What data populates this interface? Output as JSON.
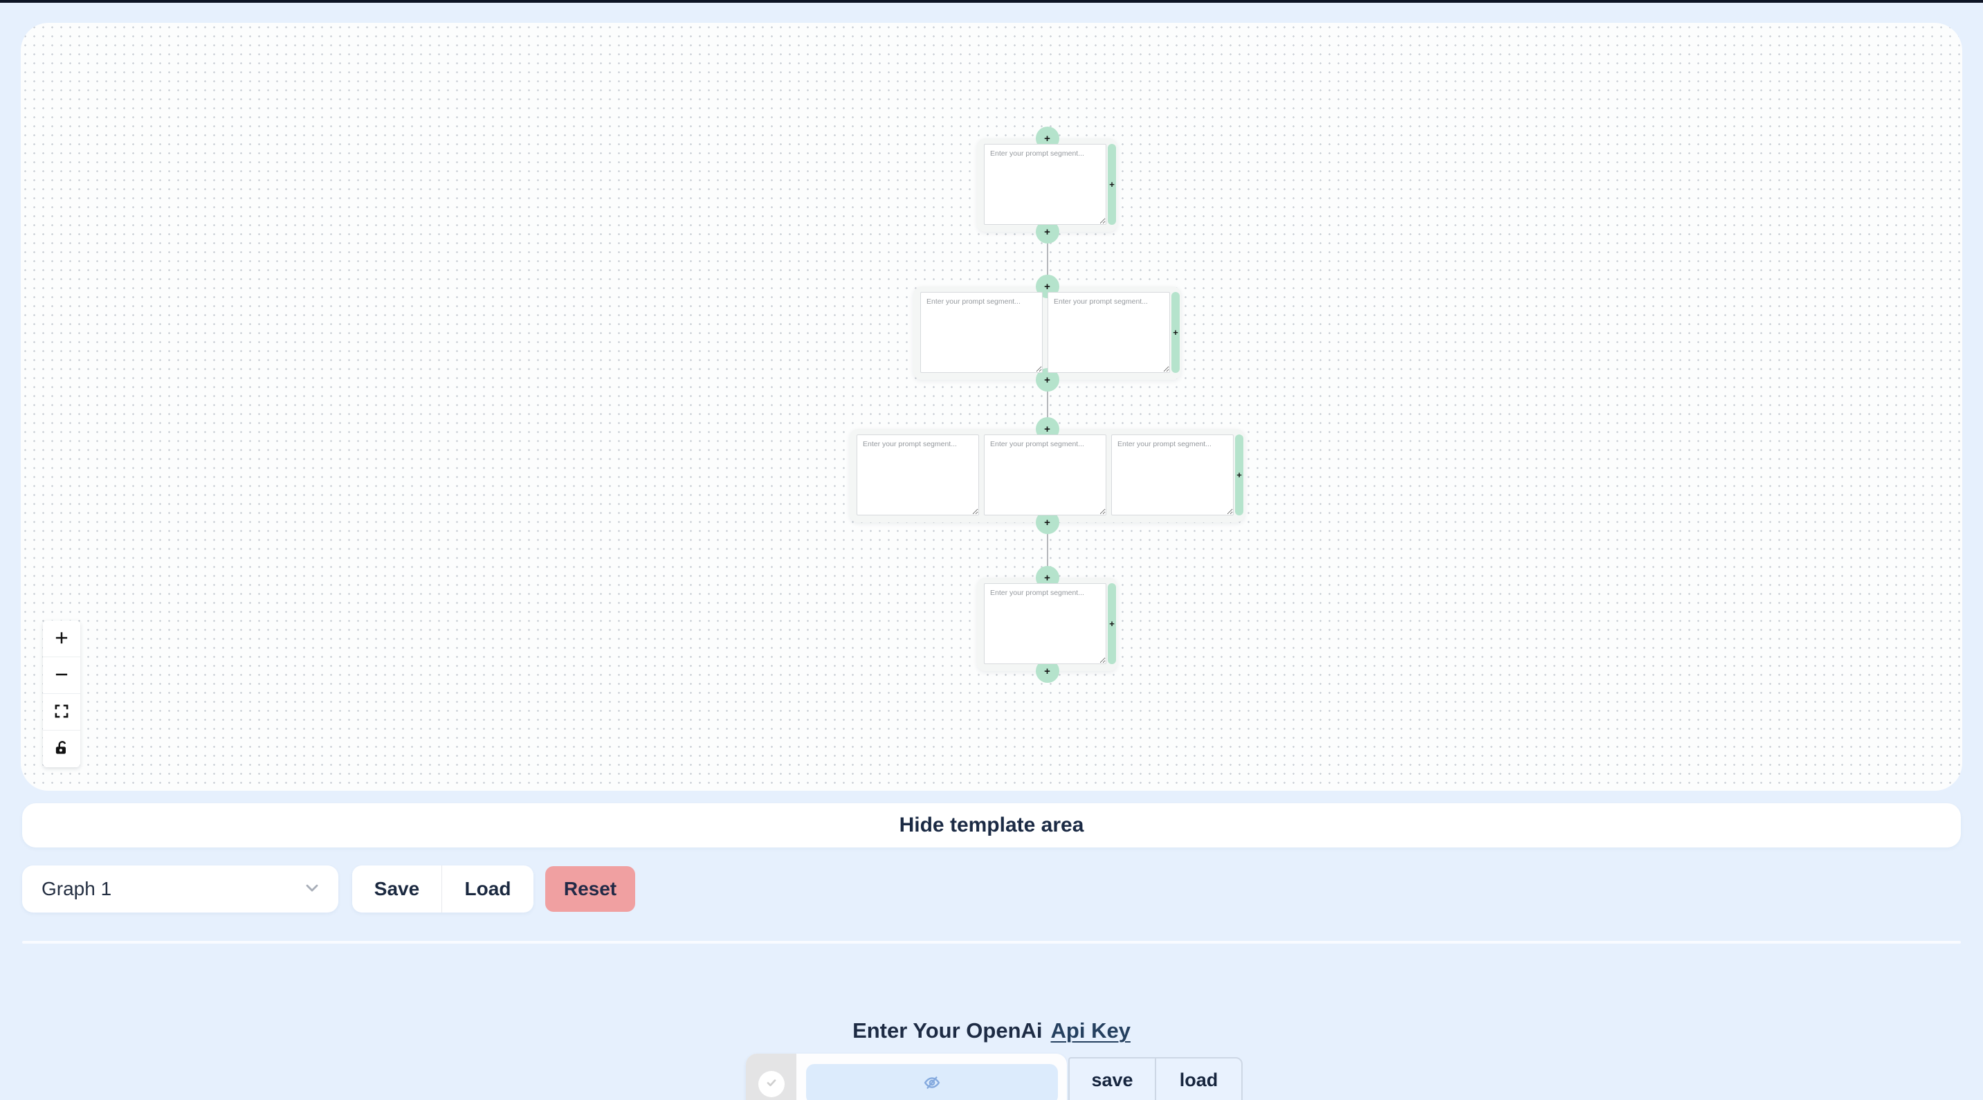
{
  "window": {
    "top_bar_color": "#0d1424",
    "page_background": "#e6f0fd"
  },
  "canvas": {
    "background": "#fcfdfd",
    "dot_color": "#ccd1d7",
    "accent_green": "#b5e3cc",
    "prompt_placeholder": "Enter your prompt segment...",
    "add_handle_label": "+",
    "node_rows": [
      {
        "segments": 1
      },
      {
        "segments": 2
      },
      {
        "segments": 3
      },
      {
        "segments": 1
      }
    ],
    "controls": [
      {
        "name": "zoom-in-icon"
      },
      {
        "name": "zoom-out-icon"
      },
      {
        "name": "fit-view-icon"
      },
      {
        "name": "unlock-icon"
      }
    ]
  },
  "template_bar": {
    "label": "Hide template area"
  },
  "graph_toolbar": {
    "graph_select_value": "Graph 1",
    "save_label": "Save",
    "load_label": "Load",
    "reset_label": "Reset",
    "reset_color": "#f0a0a1"
  },
  "api_key_section": {
    "label_prefix": "Enter Your OpenAi",
    "link_label": "Api Key",
    "key_input_value": "",
    "key_input_placeholder": "",
    "save_label": "save",
    "load_label": "load",
    "input_color": "#dcebfc"
  }
}
